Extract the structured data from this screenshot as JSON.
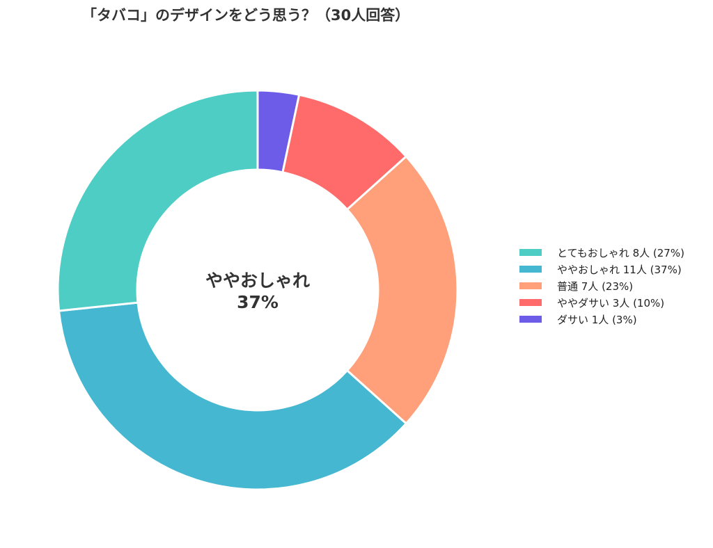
{
  "chart_data": {
    "type": "pie",
    "variant": "donut",
    "title": "「タバコ」のデザインをどう思う？（30人回答）",
    "center_label": {
      "line1": "ややおしゃれ",
      "line2": "37%"
    },
    "legend_position": "right",
    "slices": [
      {
        "label": "とてもおしゃれ",
        "count": 8,
        "percent": 27,
        "color": "#4ECDC4",
        "legend": "とてもおしゃれ  8人 (27%)"
      },
      {
        "label": "ややおしゃれ",
        "count": 11,
        "percent": 37,
        "color": "#45B7D1",
        "legend": "ややおしゃれ  11人 (37%)"
      },
      {
        "label": "普通",
        "count": 7,
        "percent": 23,
        "color": "#FFA07A",
        "legend": "普通  7人 (23%)"
      },
      {
        "label": "ややダサい",
        "count": 3,
        "percent": 10,
        "color": "#FF6B6B",
        "legend": "ややダサい  3人 (10%)"
      },
      {
        "label": "ダサい",
        "count": 1,
        "percent": 3,
        "color": "#6C5CE7",
        "legend": "ダサい  1人 (3%)"
      }
    ]
  }
}
